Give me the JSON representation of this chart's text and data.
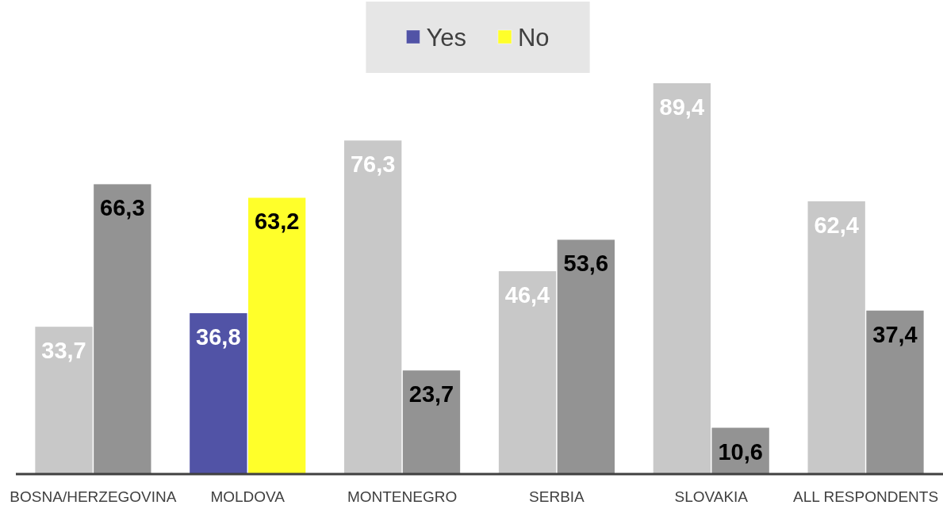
{
  "chart_data": {
    "type": "bar",
    "categories": [
      "BOSNA/HERZEGOVINA",
      "MOLDOVA",
      "MONTENEGRO",
      "SERBIA",
      "SLOVAKIA",
      "ALL RESPONDENTS"
    ],
    "series": [
      {
        "name": "Yes",
        "color": "#5153a6",
        "colors": [
          "#c8c8c8",
          "#5153a6",
          "#c8c8c8",
          "#c8c8c8",
          "#c8c8c8",
          "#c8c8c8"
        ],
        "values": [
          33.7,
          36.8,
          76.3,
          46.4,
          89.4,
          62.4
        ],
        "value_labels": [
          "33,7",
          "36,8",
          "76,3",
          "46,4",
          "89,4",
          "62,4"
        ]
      },
      {
        "name": "No",
        "color": "#ffff2a",
        "colors": [
          "#939393",
          "#ffff2a",
          "#939393",
          "#939393",
          "#939393",
          "#939393"
        ],
        "values": [
          66.3,
          63.2,
          23.7,
          53.6,
          10.6,
          37.4
        ],
        "value_labels": [
          "66,3",
          "63,2",
          "23,7",
          "53,6",
          "10,6",
          "37,4"
        ]
      }
    ],
    "legend": "top"
  }
}
